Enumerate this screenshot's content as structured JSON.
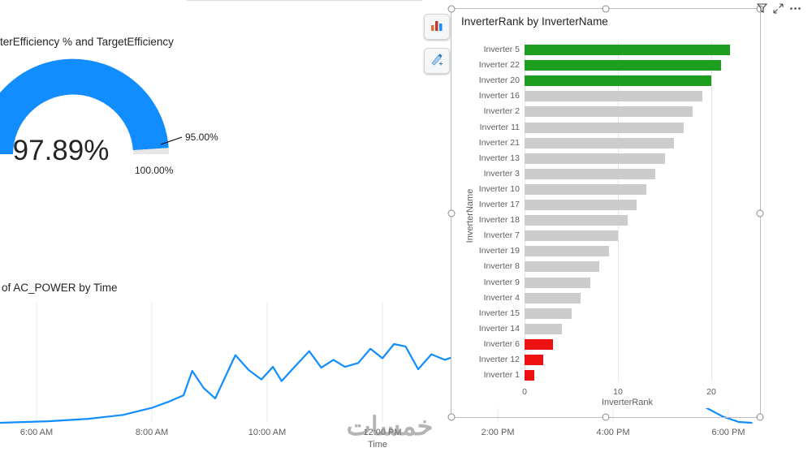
{
  "watermark": {
    "text": "خمسات"
  },
  "colors": {
    "blue": "#118DFF",
    "green": "#1E9E1E",
    "red": "#EE1111",
    "gray": "#CCCCCC"
  },
  "gauge": {
    "title": "terEfficiency % and TargetEfficiency",
    "value_label": "97.89%",
    "target_label": "95.00%",
    "max_label": "100.00%"
  },
  "line_chart": {
    "title": "of AC_POWER by Time",
    "axis_title": "Time"
  },
  "bar_chart": {
    "title": "InverterRank by InverterName",
    "y_axis_title": "InverterName",
    "x_axis_title": "InverterRank"
  },
  "visual_header": {
    "icons": [
      "filter-icon",
      "focus-mode-icon",
      "more-options-icon"
    ]
  },
  "side_buttons": {
    "icons": [
      "column-chart-icon",
      "pen-icon"
    ]
  },
  "chart_data": [
    {
      "type": "gauge",
      "value": 97.89,
      "target": 95.0,
      "min": 0,
      "max": 100,
      "unit": "%",
      "color": "#118DFF"
    },
    {
      "type": "line",
      "title": "of AC_POWER by Time",
      "xlabel": "Time",
      "x_ticks": [
        "6:00 AM",
        "8:00 AM",
        "10:00 AM",
        "12:00 PM",
        "2:00 PM",
        "4:00 PM",
        "6:00 PM"
      ],
      "x_tick_hours": [
        6,
        8,
        10,
        12,
        14,
        16,
        18
      ],
      "note": "y-axis labels cropped off-screen; values estimated in relative units 0-100",
      "points": [
        [
          5.37,
          0
        ],
        [
          6.2,
          2
        ],
        [
          6.9,
          5
        ],
        [
          7.5,
          10
        ],
        [
          8.0,
          19
        ],
        [
          8.3,
          27
        ],
        [
          8.55,
          35
        ],
        [
          8.7,
          66
        ],
        [
          8.9,
          44
        ],
        [
          9.1,
          31
        ],
        [
          9.45,
          86
        ],
        [
          9.68,
          67
        ],
        [
          9.9,
          55
        ],
        [
          10.1,
          71
        ],
        [
          10.25,
          53
        ],
        [
          10.45,
          69
        ],
        [
          10.73,
          91
        ],
        [
          10.94,
          70
        ],
        [
          11.15,
          80
        ],
        [
          11.35,
          71
        ],
        [
          11.58,
          76
        ],
        [
          11.79,
          94
        ],
        [
          12.0,
          82
        ],
        [
          12.2,
          100
        ],
        [
          12.4,
          97
        ],
        [
          12.62,
          68
        ],
        [
          12.85,
          87
        ],
        [
          13.08,
          80
        ],
        [
          13.4,
          88
        ],
        [
          13.8,
          94
        ],
        [
          14.4,
          100
        ],
        [
          14.9,
          92
        ],
        [
          15.5,
          97
        ],
        [
          16.1,
          91
        ],
        [
          16.6,
          78
        ],
        [
          17.05,
          58
        ],
        [
          17.35,
          35
        ],
        [
          17.62,
          19
        ],
        [
          17.9,
          8
        ],
        [
          18.18,
          1
        ],
        [
          18.4,
          0
        ]
      ]
    },
    {
      "type": "bar",
      "orientation": "horizontal",
      "title": "InverterRank by InverterName",
      "xlabel": "InverterRank",
      "ylabel": "InverterName",
      "x_ticks": [
        0,
        10,
        20
      ],
      "xlim": [
        0,
        22
      ],
      "categories": [
        "Inverter 5",
        "Inverter 22",
        "Inverter 20",
        "Inverter 16",
        "Inverter 2",
        "Inverter 11",
        "Inverter 21",
        "Inverter 13",
        "Inverter 3",
        "Inverter 10",
        "Inverter 17",
        "Inverter 18",
        "Inverter 7",
        "Inverter 19",
        "Inverter 8",
        "Inverter 9",
        "Inverter 4",
        "Inverter 15",
        "Inverter 14",
        "Inverter 6",
        "Inverter 12",
        "Inverter 1"
      ],
      "values": [
        22,
        21,
        20,
        19,
        18,
        17,
        16,
        15,
        14,
        13,
        12,
        11,
        10,
        9,
        8,
        7,
        6,
        5,
        4,
        3,
        2,
        1
      ],
      "bar_colors": [
        "green",
        "green",
        "green",
        "gray",
        "gray",
        "gray",
        "gray",
        "gray",
        "gray",
        "gray",
        "gray",
        "gray",
        "gray",
        "gray",
        "gray",
        "gray",
        "gray",
        "gray",
        "gray",
        "red",
        "red",
        "red"
      ]
    }
  ]
}
